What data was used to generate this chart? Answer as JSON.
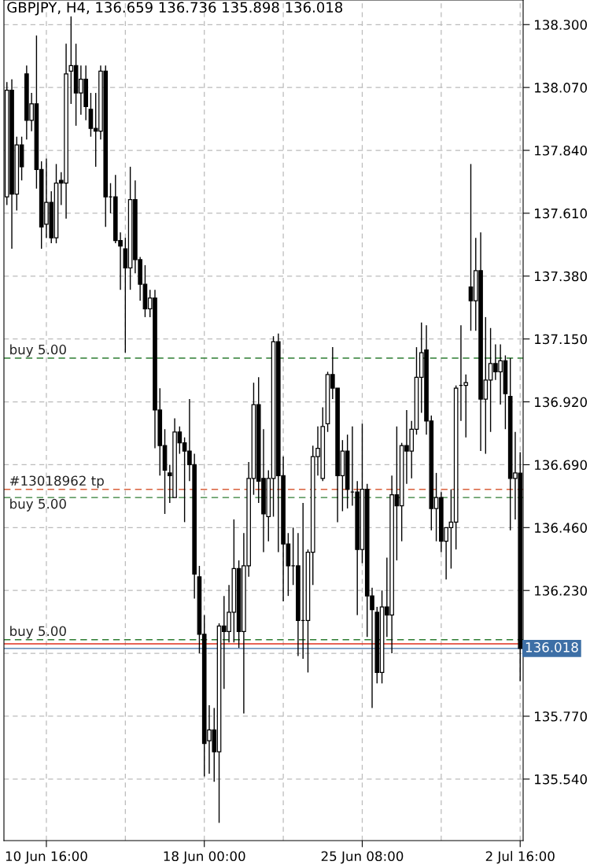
{
  "chart_data": {
    "type": "candlestick",
    "title": "GBPJPY, H4, 136.659 136.736 135.898 136.018",
    "categories": [
      null,
      null,
      null,
      null,
      null,
      null,
      null,
      null,
      "10 Jun 16:00",
      null,
      null,
      null,
      null,
      null,
      null,
      null,
      null,
      null,
      null,
      null,
      null,
      null,
      null,
      null,
      null,
      null,
      null,
      null,
      null,
      null,
      null,
      null,
      null,
      null,
      null,
      null,
      null,
      null,
      null,
      null,
      "18 Jun 00:00",
      null,
      null,
      null,
      null,
      null,
      null,
      null,
      null,
      null,
      null,
      null,
      null,
      null,
      null,
      null,
      null,
      null,
      null,
      null,
      null,
      null,
      null,
      null,
      null,
      null,
      null,
      null,
      null,
      null,
      null,
      null,
      "25 Jun 08:00",
      null,
      null,
      null,
      null,
      null,
      null,
      null,
      null,
      null,
      null,
      null,
      null,
      null,
      null,
      null,
      null,
      null,
      null,
      null,
      null,
      null,
      null,
      null,
      null,
      null,
      null,
      null,
      null,
      null,
      null,
      null,
      "2 Jul 16:00"
    ],
    "ohlc": [
      [
        137.67,
        138.09,
        137.64,
        138.06
      ],
      [
        138.06,
        138.1,
        137.48,
        137.68
      ],
      [
        137.68,
        137.89,
        137.62,
        137.86
      ],
      [
        137.86,
        137.89,
        137.73,
        137.78
      ],
      [
        138.12,
        138.15,
        137.88,
        137.95
      ],
      [
        137.95,
        138.05,
        137.91,
        138.01
      ],
      [
        138.01,
        138.26,
        137.7,
        137.77
      ],
      [
        137.77,
        137.8,
        137.48,
        137.56
      ],
      [
        137.57,
        137.81,
        137.52,
        137.65
      ],
      [
        137.65,
        137.69,
        137.5,
        137.52
      ],
      [
        137.52,
        137.79,
        137.5,
        137.72
      ],
      [
        137.73,
        137.76,
        137.64,
        137.72
      ],
      [
        137.72,
        138.23,
        137.59,
        138.12
      ],
      [
        138.13,
        138.33,
        138.01,
        138.15
      ],
      [
        138.15,
        138.23,
        137.93,
        138.05
      ],
      [
        138.05,
        138.15,
        137.97,
        138.1
      ],
      [
        138.1,
        138.15,
        137.95,
        138.0
      ],
      [
        137.99,
        138.05,
        137.89,
        137.92
      ],
      [
        137.92,
        138.05,
        137.78,
        137.91
      ],
      [
        137.91,
        138.15,
        137.88,
        138.13
      ],
      [
        138.13,
        138.15,
        137.56,
        137.67
      ],
      [
        137.67,
        137.72,
        137.61,
        137.67
      ],
      [
        137.67,
        137.75,
        137.5,
        137.51
      ],
      [
        137.51,
        137.54,
        137.33,
        137.49
      ],
      [
        137.48,
        137.52,
        137.1,
        137.41
      ],
      [
        137.41,
        137.78,
        137.33,
        137.66
      ],
      [
        137.66,
        137.73,
        137.39,
        137.44
      ],
      [
        137.44,
        137.45,
        137.29,
        137.35
      ],
      [
        137.35,
        137.42,
        137.23,
        137.26
      ],
      [
        137.26,
        137.33,
        137.23,
        137.3
      ],
      [
        137.3,
        137.33,
        136.75,
        136.89
      ],
      [
        136.89,
        136.97,
        136.65,
        136.76
      ],
      [
        136.76,
        136.82,
        136.51,
        136.67
      ],
      [
        136.66,
        136.69,
        136.55,
        136.65
      ],
      [
        136.57,
        136.86,
        136.57,
        136.81
      ],
      [
        136.81,
        136.83,
        136.73,
        136.77
      ],
      [
        136.77,
        136.79,
        136.48,
        136.74
      ],
      [
        136.74,
        136.93,
        136.63,
        136.69
      ],
      [
        136.69,
        136.73,
        136.2,
        136.29
      ],
      [
        136.28,
        136.32,
        136.0,
        136.07
      ],
      [
        136.07,
        136.14,
        135.55,
        135.67
      ],
      [
        135.68,
        135.81,
        135.56,
        135.72
      ],
      [
        135.72,
        135.8,
        135.53,
        135.64
      ],
      [
        135.64,
        136.11,
        135.38,
        136.1
      ],
      [
        136.1,
        136.21,
        135.87,
        136.08
      ],
      [
        136.08,
        136.25,
        136.04,
        136.15
      ],
      [
        136.15,
        136.49,
        136.04,
        136.31
      ],
      [
        136.31,
        136.34,
        136.02,
        136.08
      ],
      [
        136.08,
        136.44,
        135.78,
        136.32
      ],
      [
        136.32,
        136.7,
        136.28,
        136.64
      ],
      [
        136.64,
        136.99,
        136.58,
        136.91
      ],
      [
        136.91,
        137.01,
        136.55,
        136.63
      ],
      [
        136.64,
        136.82,
        136.37,
        136.51
      ],
      [
        136.5,
        136.67,
        136.41,
        136.64
      ],
      [
        136.64,
        137.16,
        136.5,
        137.14
      ],
      [
        137.14,
        137.17,
        136.37,
        136.65
      ],
      [
        136.65,
        136.72,
        136.19,
        136.4
      ],
      [
        136.4,
        136.44,
        136.21,
        136.32
      ],
      [
        136.32,
        136.46,
        136.25,
        136.32
      ],
      [
        136.32,
        136.44,
        135.99,
        136.12
      ],
      [
        136.12,
        136.55,
        135.98,
        136.12
      ],
      [
        136.12,
        136.38,
        135.93,
        136.37
      ],
      [
        136.37,
        136.76,
        136.25,
        136.72
      ],
      [
        136.72,
        136.83,
        136.65,
        136.75
      ],
      [
        136.64,
        136.9,
        136.63,
        136.83
      ],
      [
        136.84,
        137.03,
        136.81,
        137.02
      ],
      [
        137.02,
        137.12,
        136.93,
        136.97
      ],
      [
        136.97,
        136.97,
        136.48,
        136.65
      ],
      [
        136.65,
        136.78,
        136.52,
        136.74
      ],
      [
        136.74,
        136.8,
        136.53,
        136.6
      ],
      [
        136.59,
        136.83,
        136.54,
        136.59
      ],
      [
        136.59,
        136.63,
        136.14,
        136.38
      ],
      [
        136.38,
        136.84,
        136.33,
        136.6
      ],
      [
        136.6,
        136.62,
        136.06,
        136.21
      ],
      [
        136.21,
        136.24,
        135.8,
        136.16
      ],
      [
        136.15,
        136.17,
        135.89,
        135.93
      ],
      [
        135.93,
        136.23,
        135.89,
        136.17
      ],
      [
        136.17,
        136.35,
        136.06,
        136.14
      ],
      [
        136.14,
        136.65,
        136.0,
        136.58
      ],
      [
        136.58,
        136.83,
        136.34,
        136.54
      ],
      [
        136.54,
        136.77,
        136.41,
        136.76
      ],
      [
        136.76,
        136.89,
        136.62,
        136.74
      ],
      [
        136.74,
        136.85,
        136.64,
        136.82
      ],
      [
        136.82,
        137.12,
        136.8,
        137.01
      ],
      [
        137.01,
        137.21,
        136.88,
        137.1
      ],
      [
        137.11,
        137.2,
        136.8,
        136.85
      ],
      [
        136.85,
        136.87,
        136.45,
        136.53
      ],
      [
        136.53,
        136.66,
        136.41,
        136.57
      ],
      [
        136.57,
        136.59,
        136.37,
        136.41
      ],
      [
        136.41,
        136.46,
        136.27,
        136.46
      ],
      [
        136.46,
        136.6,
        136.31,
        136.48
      ],
      [
        136.48,
        136.98,
        136.38,
        136.97
      ],
      [
        136.98,
        137.2,
        136.85,
        136.98
      ],
      [
        136.98,
        137.02,
        136.79,
        136.99
      ],
      [
        137.34,
        137.79,
        137.18,
        137.29
      ],
      [
        137.29,
        137.52,
        137.18,
        137.4
      ],
      [
        137.4,
        137.54,
        136.74,
        136.93
      ],
      [
        136.93,
        137.23,
        136.73,
        137.0
      ],
      [
        137.0,
        137.19,
        136.81,
        137.06
      ],
      [
        137.06,
        137.13,
        137.0,
        137.03
      ],
      [
        137.03,
        137.13,
        136.91,
        137.07
      ],
      [
        137.07,
        137.09,
        136.82,
        136.95
      ],
      [
        136.94,
        137.08,
        136.45,
        136.64
      ],
      [
        136.64,
        136.81,
        136.49,
        136.66
      ],
      [
        136.659,
        136.736,
        135.898,
        136.018
      ]
    ],
    "color": "#000000",
    "ylim": [
      135.315,
      138.39
    ],
    "yticks": [
      {
        "value": 138.3,
        "label": "138.300"
      },
      {
        "value": 138.07,
        "label": "138.070"
      },
      {
        "value": 137.84,
        "label": "137.840"
      },
      {
        "value": 137.61,
        "label": "137.610"
      },
      {
        "value": 137.38,
        "label": "137.380"
      },
      {
        "value": 137.15,
        "label": "137.150"
      },
      {
        "value": 136.92,
        "label": "136.920"
      },
      {
        "value": 136.69,
        "label": "136.690"
      },
      {
        "value": 136.46,
        "label": "136.460"
      },
      {
        "value": 136.23,
        "label": "136.230"
      },
      {
        "value": 136.0,
        "label": null
      },
      {
        "value": 135.77,
        "label": "135.770"
      },
      {
        "value": 135.54,
        "label": "135.540"
      }
    ],
    "ref_lines": [
      {
        "axis": "y",
        "value": 137.08,
        "label": "buy 5.00",
        "color": "#2e7d32",
        "line_style": "dashed"
      },
      {
        "axis": "y",
        "value": 136.6,
        "label": "#13018962 tp",
        "color": "#d9603b",
        "line_style": "dashed"
      },
      {
        "axis": "y",
        "value": 136.57,
        "label": "buy 5.00",
        "color": "#2e7d32",
        "line_style": "dashed"
      },
      {
        "axis": "y",
        "value": 136.05,
        "label": "buy 5.00",
        "color": "#2e7d32",
        "line_style": "dashed"
      },
      {
        "axis": "y",
        "value": 136.035,
        "color": "#e0301e",
        "line_style": "solid"
      },
      {
        "axis": "y",
        "value": 136.018,
        "label": "136.018",
        "color": "#3d6fa6",
        "line_style": "solid"
      }
    ],
    "grid": true
  }
}
